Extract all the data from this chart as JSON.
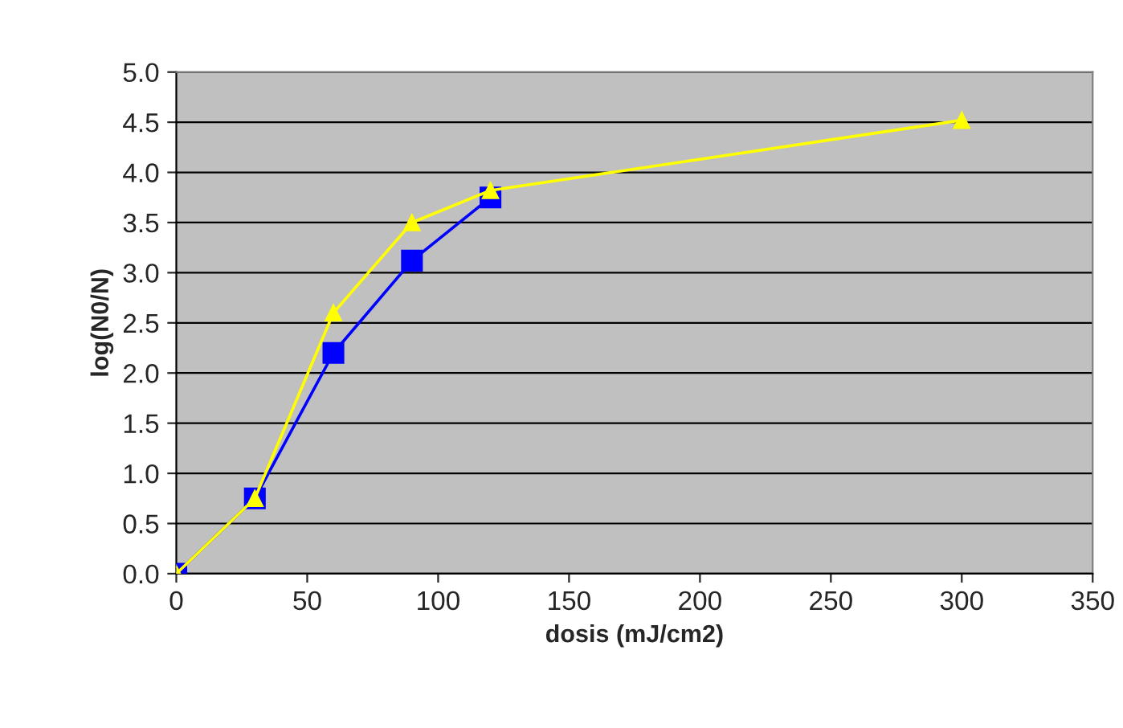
{
  "chart_data": {
    "type": "line",
    "xlabel": "dosis (mJ/cm2)",
    "ylabel": "log(N0/N)",
    "series": [
      {
        "color": "#0000ff",
        "marker": "square",
        "x": [
          0,
          30,
          60,
          90,
          120
        ],
        "values": [
          0,
          0.75,
          2.2,
          3.12,
          3.75
        ]
      },
      {
        "color": "#ffff00",
        "marker": "triangle",
        "x": [
          0,
          30,
          60,
          90,
          120,
          300
        ],
        "values": [
          0,
          0.75,
          2.6,
          3.5,
          3.82,
          4.52
        ]
      }
    ],
    "xlim": [
      0,
      350
    ],
    "xticks": [
      0,
      50,
      100,
      150,
      200,
      250,
      300,
      350
    ],
    "ylim": [
      0,
      5
    ],
    "yticks": [
      {
        "value": 0,
        "label": "0.0"
      },
      {
        "value": 0.5,
        "label": "0.5"
      },
      {
        "value": 1,
        "label": "1.0"
      },
      {
        "value": 1.5,
        "label": "1.5"
      },
      {
        "value": 2,
        "label": "2.0"
      },
      {
        "value": 2.5,
        "label": "2.5"
      },
      {
        "value": 3,
        "label": "3.0"
      },
      {
        "value": 3.5,
        "label": "3.5"
      },
      {
        "value": 4,
        "label": "4.0"
      },
      {
        "value": 4.5,
        "label": "4.5"
      },
      {
        "value": 5,
        "label": "5.0"
      }
    ],
    "grid": "y",
    "line_style": "solid"
  }
}
